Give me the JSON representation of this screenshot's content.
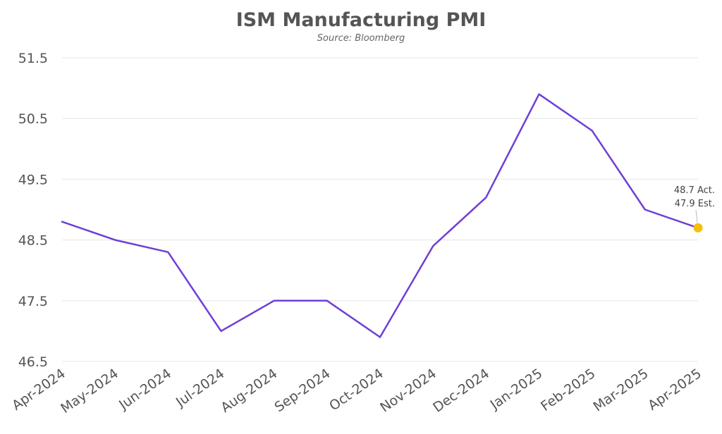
{
  "chart_data": {
    "type": "line",
    "title": "ISM Manufacturing PMI",
    "subtitle": "Source: Bloomberg",
    "xlabel": "",
    "ylabel": "",
    "categories": [
      "Apr-2024",
      "May-2024",
      "Jun-2024",
      "Jul-2024",
      "Aug-2024",
      "Sep-2024",
      "Oct-2024",
      "Nov-2024",
      "Dec-2024",
      "Jan-2025",
      "Feb-2025",
      "Mar-2025",
      "Apr-2025"
    ],
    "series": [
      {
        "values": [
          48.8,
          48.5,
          48.3,
          47.0,
          47.5,
          47.5,
          46.9,
          48.4,
          49.2,
          50.9,
          50.3,
          49.0,
          48.7
        ]
      }
    ],
    "ylim": [
      46.5,
      51.5
    ],
    "yticks": [
      "46.5",
      "47.5",
      "48.5",
      "49.5",
      "50.5",
      "51.5"
    ],
    "grid": true,
    "line_color": "#6f3fd6",
    "highlight_color": "#f5bf0f",
    "annotation": {
      "lines": [
        "48.7 Act.",
        "47.9 Est."
      ],
      "point_index": 12
    }
  }
}
